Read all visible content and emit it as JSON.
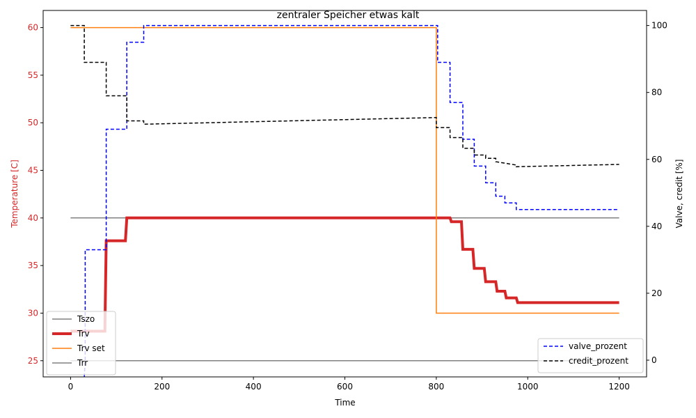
{
  "chart_data": {
    "type": "line",
    "title": "zentraler Speicher etwas kalt",
    "xlabel": "Time",
    "ylabel_left": "Temperature [C]",
    "ylabel_right": "Valve, credit [%]",
    "xlim": [
      -60,
      1260
    ],
    "ylim_left": [
      23.3,
      61.8
    ],
    "ylim_right": [
      -5,
      104.5
    ],
    "x_ticks": [
      0,
      200,
      400,
      600,
      800,
      1000,
      1200
    ],
    "y_ticks_left": [
      25,
      30,
      35,
      40,
      45,
      50,
      55,
      60
    ],
    "y_ticks_right": [
      0,
      20,
      40,
      60,
      80,
      100
    ],
    "colors": {
      "left_axis": "#d62728",
      "gray": "#808080",
      "red": "#d62728",
      "orange": "#ff7f0e",
      "blue": "#0000ff",
      "black": "#000000"
    },
    "legend_left_placement": "lower-left",
    "legend_right_placement": "lower-right",
    "series_left": [
      {
        "name": "Tszo",
        "color": "#808080",
        "width": 1.5,
        "dash": "",
        "x": [
          0,
          1200
        ],
        "y": [
          40,
          40
        ]
      },
      {
        "name": "Trv",
        "color": "#d62728",
        "width": 4,
        "dash": "",
        "x": [
          0,
          75,
          78,
          120,
          123,
          830,
          833,
          855,
          858,
          880,
          883,
          905,
          908,
          930,
          933,
          950,
          953,
          975,
          978,
          1200
        ],
        "y": [
          28.1,
          28.1,
          37.6,
          37.6,
          40,
          40,
          39.6,
          39.6,
          36.7,
          36.7,
          34.7,
          34.7,
          33.3,
          33.3,
          32.3,
          32.3,
          31.6,
          31.6,
          31.1,
          31.1
        ]
      },
      {
        "name": "Trv set",
        "color": "#ff7f0e",
        "width": 1.5,
        "dash": "",
        "x": [
          0,
          800,
          800,
          1200
        ],
        "y": [
          60,
          60,
          30,
          30
        ]
      },
      {
        "name": "Trr",
        "color": "#808080",
        "width": 1.5,
        "dash": "",
        "x": [
          0,
          1200
        ],
        "y": [
          25,
          25
        ]
      }
    ],
    "series_right": [
      {
        "name": "valve_prozent",
        "color": "#0000ff",
        "width": 1.5,
        "dash": "5,3",
        "x": [
          30,
          32,
          32,
          78,
          78,
          123,
          123,
          160,
          160,
          803,
          803,
          830,
          830,
          858,
          858,
          883,
          883,
          908,
          908,
          930,
          930,
          950,
          950,
          975,
          975,
          1200
        ],
        "y": [
          -5,
          0,
          33,
          33,
          69,
          69,
          95,
          95,
          100,
          100,
          89,
          89,
          77,
          77,
          66,
          66,
          58,
          58,
          53,
          53,
          49,
          49,
          47,
          47,
          45,
          45
        ]
      },
      {
        "name": "credit_prozent",
        "color": "#000000",
        "width": 1.5,
        "dash": "5,3",
        "x": [
          0,
          30,
          30,
          78,
          78,
          123,
          123,
          160,
          160,
          800,
          800,
          830,
          830,
          858,
          858,
          883,
          883,
          908,
          908,
          930,
          930,
          975,
          975,
          1200
        ],
        "y": [
          100,
          100,
          89,
          89,
          79,
          79,
          71.5,
          71.5,
          70.5,
          72.5,
          69.5,
          69.5,
          66.5,
          66.5,
          63.3,
          63.3,
          61.3,
          61.3,
          60.3,
          60.3,
          59.3,
          58.3,
          57.8,
          58.5
        ]
      }
    ]
  }
}
